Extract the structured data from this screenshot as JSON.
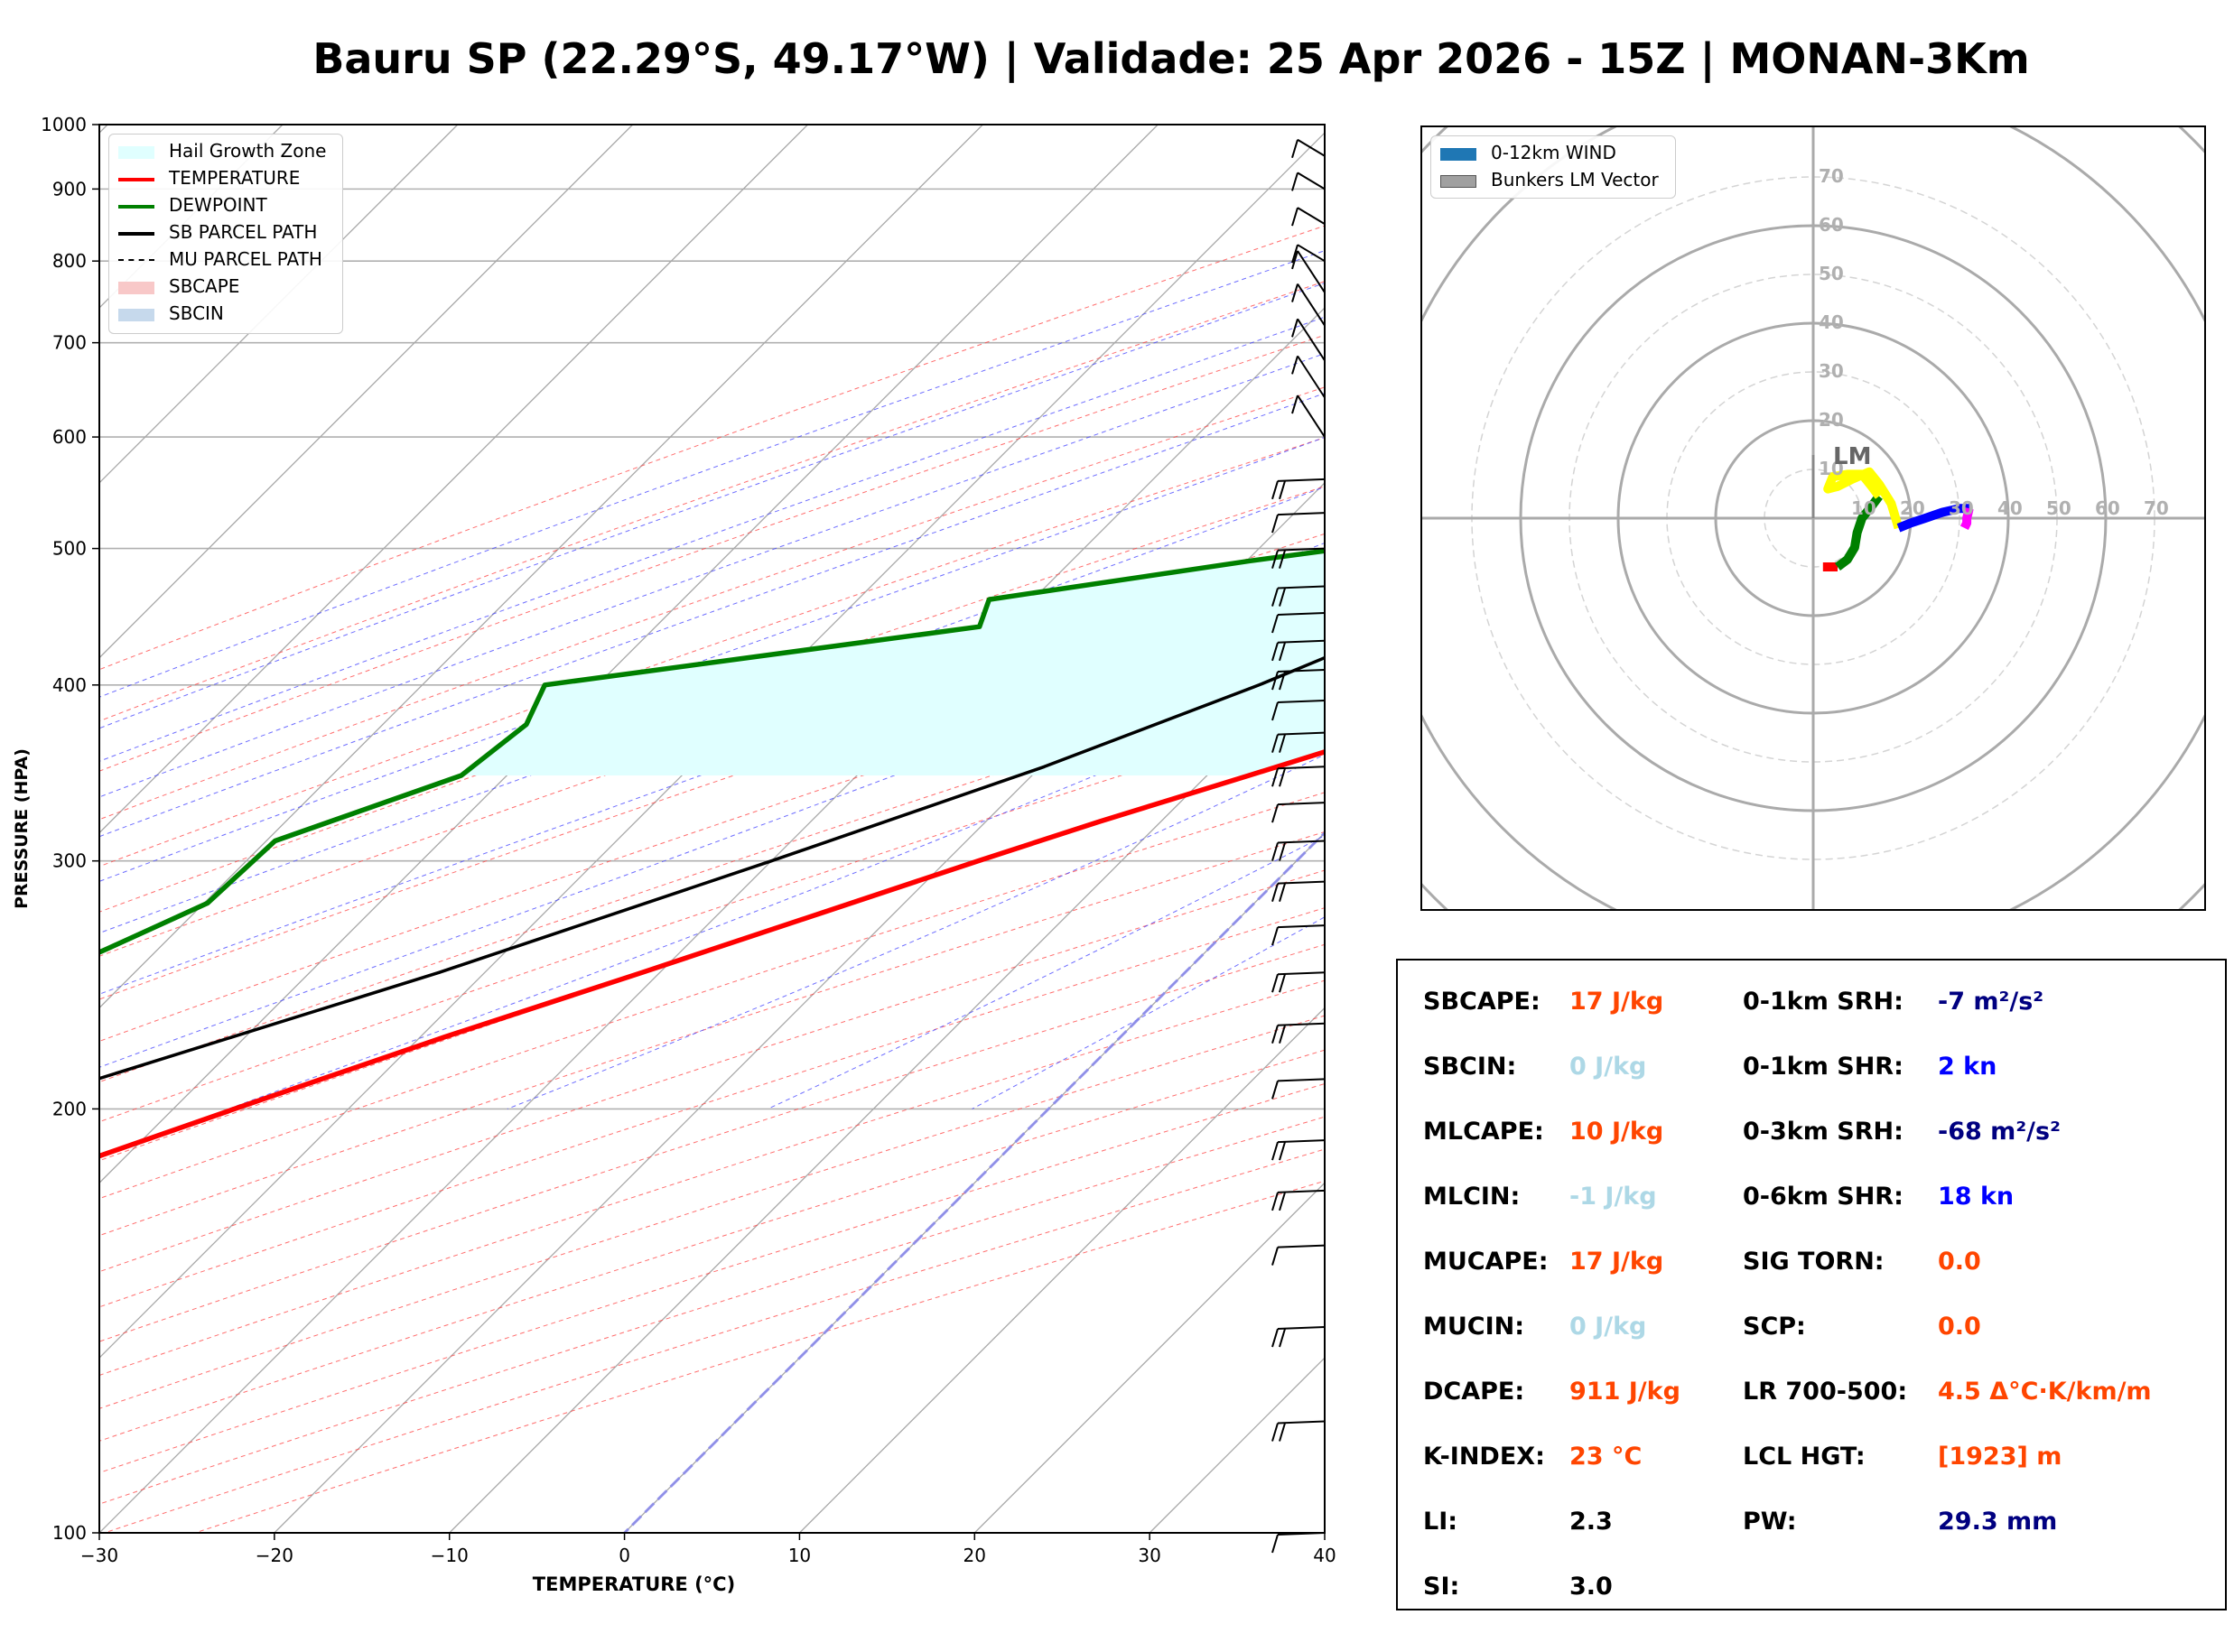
{
  "title": "Bauru SP (22.29°S, 49.17°W) | Validade: 25 Apr 2026 - 15Z | MONAN-3Km",
  "skewt": {
    "xlabel": "TEMPERATURE (°C)",
    "ylabel": "PRESSURE (HPA)",
    "xlim": [
      -30,
      40
    ],
    "ylim": [
      1000,
      100
    ],
    "x_ticks": [
      "−30",
      "−20",
      "−10",
      "0",
      "10",
      "20",
      "30",
      "40"
    ],
    "y_ticks": [
      "1000",
      "900",
      "800",
      "700",
      "600",
      "500",
      "400",
      "300",
      "200",
      "100"
    ],
    "legend": [
      {
        "label": "Hail Growth Zone",
        "color": "#e0ffff",
        "kind": "patch"
      },
      {
        "label": "TEMPERATURE",
        "color": "#ff0000",
        "kind": "line"
      },
      {
        "label": "DEWPOINT",
        "color": "#008000",
        "kind": "line"
      },
      {
        "label": "SB PARCEL PATH",
        "color": "#000000",
        "kind": "line"
      },
      {
        "label": "MU PARCEL PATH",
        "color": "#000000",
        "kind": "dashed"
      },
      {
        "label": "SBCAPE",
        "color": "#f8c8c8",
        "kind": "patch"
      },
      {
        "label": "SBCIN",
        "color": "#c6d9ec",
        "kind": "patch"
      }
    ]
  },
  "chart_data": [
    {
      "type": "line",
      "title": "Bauru SP (22.29°S, 49.17°W) | Validade: 25 Apr 2026 - 15Z | MONAN-3Km",
      "xlabel": "TEMPERATURE (°C)",
      "ylabel": "PRESSURE (HPA)",
      "xlim": [
        -30,
        40
      ],
      "ylim": [
        1000,
        100
      ],
      "y_scale": "log",
      "skew_deg_per_log": 45,
      "series": [
        {
          "name": "TEMPERATURE",
          "color": "#ff0000",
          "pressure": [
            960,
            920,
            880,
            840,
            800,
            770,
            750,
            720,
            690,
            660,
            630,
            600,
            570,
            540,
            500,
            460,
            430,
            400,
            370,
            345,
            320,
            300,
            275,
            250,
            225,
            200,
            185,
            170,
            155,
            145,
            135,
            120,
            110,
            100
          ],
          "temp": [
            30.9,
            28.3,
            26.1,
            24.2,
            22.6,
            21.6,
            20.7,
            19.4,
            19.2,
            20.0,
            20.9,
            19.4,
            17.9,
            16.1,
            13.8,
            11.0,
            8.0,
            3.7,
            -2.2,
            -7.6,
            -13.5,
            -18.2,
            -24.3,
            -31.0,
            -38.6,
            -46.5,
            -51.6,
            -57.7,
            -63.5,
            -67.0,
            -69.9,
            -71.7,
            -73.1,
            -74.7
          ]
        },
        {
          "name": "DEWPOINT",
          "color": "#008000",
          "pressure": [
            960,
            920,
            900,
            880,
            860,
            820,
            800,
            770,
            740,
            720,
            690,
            660,
            640,
            620,
            600,
            570,
            545,
            520,
            490,
            460,
            440,
            400,
            375,
            345,
            310,
            280,
            260,
            235,
            210,
            190,
            175,
            160,
            150,
            140,
            125,
            110,
            100
          ],
          "temp": [
            11.8,
            11.9,
            12.3,
            12.7,
            12.6,
            12.6,
            12.8,
            13.0,
            12.6,
            11.0,
            3.9,
            -5.4,
            -10.5,
            -8.5,
            -0.4,
            1.8,
            -1.1,
            -6.3,
            -19.8,
            -32.5,
            -31.5,
            -53.0,
            -51.8,
            -52.6,
            -59.5,
            -59.8,
            -62.9,
            -67.4,
            -70.6,
            -71.0,
            -71.7,
            -72.8,
            -75.4,
            -79.5,
            -82.5,
            -84.0,
            -84.7
          ]
        },
        {
          "name": "SB PARCEL PATH",
          "color": "#000000",
          "pressure": [
            960,
            900,
            840,
            800,
            770,
            745,
            720,
            700,
            650,
            600,
            550,
            500,
            450,
            400,
            350,
            300,
            250,
            200,
            175,
            150,
            125,
            100
          ],
          "temp": [
            31.0,
            25.8,
            20.1,
            16.2,
            13.0,
            10.4,
            9.0,
            8.2,
            6.3,
            4.0,
            1.3,
            -2.0,
            -6.4,
            -12.2,
            -19.8,
            -30.0,
            -42.6,
            -59.8,
            -70.4,
            -82.8,
            -97.0,
            -113.5
          ]
        }
      ]
    },
    {
      "type": "line",
      "chart": "hodograph",
      "rings": [
        10,
        20,
        30,
        40,
        50,
        60,
        70
      ],
      "legend": [
        "0-12km WIND",
        "Bunkers LM Vector"
      ],
      "annotation": "LM",
      "lm_vector": [
        0,
        10
      ],
      "segments": [
        {
          "color": "#ff0000",
          "u": [
            2.0,
            5.0
          ],
          "v": [
            -10.0,
            -10.0
          ]
        },
        {
          "color": "#008000",
          "u": [
            5.0,
            7.0,
            8.5,
            9.0,
            10.0,
            12.0,
            13.5
          ],
          "v": [
            -10.0,
            -8.5,
            -6.0,
            -3.0,
            0.0,
            2.5,
            4.5
          ]
        },
        {
          "color": "#ffff00",
          "u": [
            13.5,
            12.0,
            10.0,
            7.0,
            4.0,
            3.0,
            5.0,
            8.0,
            11.5,
            13.5,
            16.0,
            17.5
          ],
          "v": [
            4.5,
            6.5,
            9.0,
            9.0,
            8.5,
            6.0,
            6.5,
            8.0,
            9.5,
            7.0,
            3.0,
            -2.0
          ]
        },
        {
          "color": "#0000ff",
          "u": [
            17.5,
            20.0,
            23.0,
            26.5,
            30.0,
            32.0
          ],
          "v": [
            -2.0,
            -1.0,
            0.0,
            1.2,
            2.0,
            2.0
          ]
        },
        {
          "color": "#ff00ff",
          "u": [
            32.0,
            31.5,
            31.5,
            31.0
          ],
          "v": [
            2.0,
            0.0,
            -1.0,
            -2.0
          ]
        }
      ]
    }
  ],
  "indices": {
    "left": [
      {
        "label": "SBCAPE:",
        "value": "17 J/kg",
        "color": "#ff4500"
      },
      {
        "label": "SBCIN:",
        "value": "0 J/kg",
        "color": "#add8e6"
      },
      {
        "label": "MLCAPE:",
        "value": "10 J/kg",
        "color": "#ff4500"
      },
      {
        "label": "MLCIN:",
        "value": "-1 J/kg",
        "color": "#add8e6"
      },
      {
        "label": "MUCAPE:",
        "value": "17 J/kg",
        "color": "#ff4500"
      },
      {
        "label": "MUCIN:",
        "value": "0 J/kg",
        "color": "#add8e6"
      },
      {
        "label": "DCAPE:",
        "value": "911 J/kg",
        "color": "#ff4500"
      },
      {
        "label": "K-INDEX:",
        "value": "23 °C",
        "color": "#ff4500"
      },
      {
        "label": "LI:",
        "value": "2.3",
        "color": "#000000"
      },
      {
        "label": "SI:",
        "value": "3.0",
        "color": "#000000"
      }
    ],
    "right": [
      {
        "label": "0-1km SRH:",
        "value": "-7 m²/s²",
        "color": "#000080"
      },
      {
        "label": "0-1km SHR:",
        "value": "2 kn",
        "color": "#0000ff"
      },
      {
        "label": "0-3km SRH:",
        "value": "-68 m²/s²",
        "color": "#000080"
      },
      {
        "label": "0-6km SHR:",
        "value": "18 kn",
        "color": "#0000ff"
      },
      {
        "label": "SIG TORN:",
        "value": "0.0",
        "color": "#ff4500"
      },
      {
        "label": "SCP:",
        "value": "0.0",
        "color": "#ff4500"
      },
      {
        "label": "LR 700-500:",
        "value": "4.5 Δ°C·K/km/m",
        "color": "#ff4500"
      },
      {
        "label": "LCL HGT:",
        "value": "[1923] m",
        "color": "#ff4500"
      },
      {
        "label": "PW:",
        "value": "29.3 mm",
        "color": "#000080"
      }
    ]
  }
}
